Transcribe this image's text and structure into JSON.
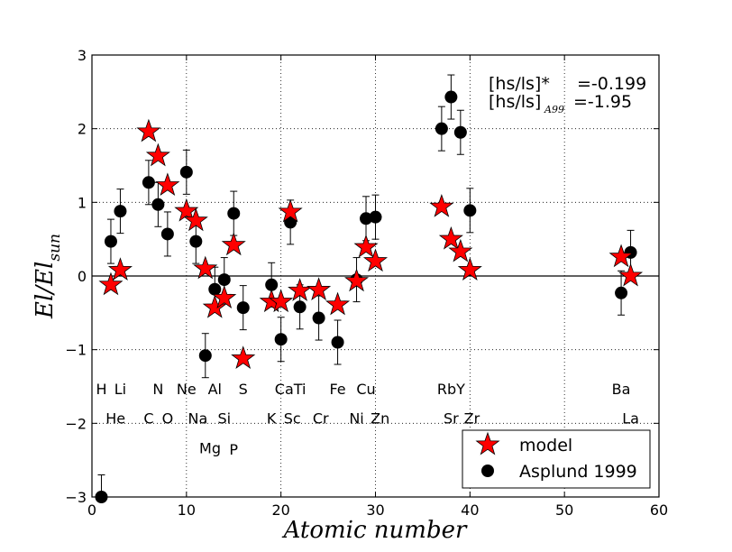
{
  "chart_data": {
    "type": "scatter",
    "title": "",
    "xlabel": "Atomic number",
    "ylabel": "El/El_sun",
    "ylabel_main": "El/El",
    "ylabel_sub": "sun",
    "xlim": [
      0,
      60
    ],
    "ylim": [
      -3,
      3
    ],
    "xticks": [
      0,
      10,
      20,
      30,
      40,
      50,
      60
    ],
    "yticks": [
      -3,
      -2,
      -1,
      0,
      1,
      2,
      3
    ],
    "xtick_labels": [
      "0",
      "10",
      "20",
      "30",
      "40",
      "50",
      "60"
    ],
    "ytick_labels": [
      "−3",
      "−2",
      "−1",
      "0",
      "1",
      "2",
      "3"
    ],
    "grid": true,
    "legend_position": "bottom-right",
    "annotations": [
      {
        "label": "[hs/ls]*",
        "value": "=-0.199"
      },
      {
        "label": "[hs/ls]",
        "sub": "A99",
        "value": "=-1.95"
      }
    ],
    "series": [
      {
        "name": "model",
        "marker": "star",
        "color": "#ff0000",
        "points": [
          {
            "x": 2,
            "y": -0.12
          },
          {
            "x": 3,
            "y": 0.08
          },
          {
            "x": 6,
            "y": 1.96
          },
          {
            "x": 7,
            "y": 1.63
          },
          {
            "x": 8,
            "y": 1.23
          },
          {
            "x": 10,
            "y": 0.88
          },
          {
            "x": 11,
            "y": 0.75
          },
          {
            "x": 12,
            "y": 0.1
          },
          {
            "x": 13,
            "y": -0.43
          },
          {
            "x": 14,
            "y": -0.3
          },
          {
            "x": 15,
            "y": 0.42
          },
          {
            "x": 16,
            "y": -1.12
          },
          {
            "x": 19,
            "y": -0.35
          },
          {
            "x": 20,
            "y": -0.35
          },
          {
            "x": 21,
            "y": 0.87
          },
          {
            "x": 22,
            "y": -0.2
          },
          {
            "x": 24,
            "y": -0.19
          },
          {
            "x": 26,
            "y": -0.39
          },
          {
            "x": 28,
            "y": -0.07
          },
          {
            "x": 29,
            "y": 0.39
          },
          {
            "x": 30,
            "y": 0.2
          },
          {
            "x": 37,
            "y": 0.94
          },
          {
            "x": 38,
            "y": 0.5
          },
          {
            "x": 39,
            "y": 0.33
          },
          {
            "x": 40,
            "y": 0.08
          },
          {
            "x": 56,
            "y": 0.26
          },
          {
            "x": 57,
            "y": 0.0
          }
        ]
      },
      {
        "name": "Asplund 1999",
        "marker": "circle",
        "color": "#000000",
        "points": [
          {
            "x": 1,
            "y": -3.0,
            "err": 0.3
          },
          {
            "x": 2,
            "y": 0.47,
            "err": 0.3
          },
          {
            "x": 3,
            "y": 0.88,
            "err": 0.3
          },
          {
            "x": 6,
            "y": 1.27,
            "err": 0.3
          },
          {
            "x": 7,
            "y": 0.97,
            "err": 0.3
          },
          {
            "x": 8,
            "y": 0.57,
            "err": 0.3
          },
          {
            "x": 10,
            "y": 1.41,
            "err": 0.3
          },
          {
            "x": 11,
            "y": 0.47,
            "err": 0.3
          },
          {
            "x": 12,
            "y": -1.08,
            "err": 0.3
          },
          {
            "x": 13,
            "y": -0.18,
            "err": 0.3
          },
          {
            "x": 14,
            "y": -0.05,
            "err": 0.3
          },
          {
            "x": 15,
            "y": 0.85,
            "err": 0.3
          },
          {
            "x": 16,
            "y": -0.43,
            "err": 0.3
          },
          {
            "x": 19,
            "y": -0.12,
            "err": 0.3
          },
          {
            "x": 20,
            "y": -0.86,
            "err": 0.3
          },
          {
            "x": 21,
            "y": 0.73,
            "err": 0.3
          },
          {
            "x": 22,
            "y": -0.42,
            "err": 0.3
          },
          {
            "x": 24,
            "y": -0.57,
            "err": 0.3
          },
          {
            "x": 26,
            "y": -0.9,
            "err": 0.3
          },
          {
            "x": 28,
            "y": -0.05,
            "err": 0.3
          },
          {
            "x": 29,
            "y": 0.78,
            "err": 0.3
          },
          {
            "x": 30,
            "y": 0.8,
            "err": 0.3
          },
          {
            "x": 37,
            "y": 2.0,
            "err": 0.3
          },
          {
            "x": 38,
            "y": 2.43,
            "err": 0.3
          },
          {
            "x": 39,
            "y": 1.95,
            "err": 0.3
          },
          {
            "x": 40,
            "y": 0.89,
            "err": 0.3
          },
          {
            "x": 56,
            "y": -0.23,
            "err": 0.3
          },
          {
            "x": 57,
            "y": 0.32,
            "err": 0.3
          }
        ]
      }
    ],
    "element_labels": [
      {
        "text": "H",
        "x": 1,
        "y": -1.53
      },
      {
        "text": "Li",
        "x": 3,
        "y": -1.53
      },
      {
        "text": "N",
        "x": 7,
        "y": -1.53
      },
      {
        "text": "Ne",
        "x": 10,
        "y": -1.53
      },
      {
        "text": "Al",
        "x": 13,
        "y": -1.53
      },
      {
        "text": "S",
        "x": 16,
        "y": -1.53
      },
      {
        "text": "CaTi",
        "x": 21,
        "y": -1.53
      },
      {
        "text": "Fe",
        "x": 26,
        "y": -1.53
      },
      {
        "text": "Cu",
        "x": 29,
        "y": -1.53
      },
      {
        "text": "RbY",
        "x": 38,
        "y": -1.53
      },
      {
        "text": "Ba",
        "x": 56,
        "y": -1.53
      },
      {
        "text": "He",
        "x": 2.5,
        "y": -1.93
      },
      {
        "text": "C",
        "x": 6,
        "y": -1.93
      },
      {
        "text": "O",
        "x": 8,
        "y": -1.93
      },
      {
        "text": "Na",
        "x": 11.2,
        "y": -1.93
      },
      {
        "text": "Si",
        "x": 14,
        "y": -1.93
      },
      {
        "text": "K",
        "x": 19,
        "y": -1.93
      },
      {
        "text": "Sc",
        "x": 21.2,
        "y": -1.93
      },
      {
        "text": "Cr",
        "x": 24.2,
        "y": -1.93
      },
      {
        "text": "Ni",
        "x": 28,
        "y": -1.93
      },
      {
        "text": "Zn",
        "x": 30.5,
        "y": -1.93
      },
      {
        "text": "Sr",
        "x": 38,
        "y": -1.93
      },
      {
        "text": "Zr",
        "x": 40.2,
        "y": -1.93
      },
      {
        "text": "La",
        "x": 57,
        "y": -1.93
      },
      {
        "text": "Mg",
        "x": 12.5,
        "y": -2.33
      },
      {
        "text": "P",
        "x": 15,
        "y": -2.35
      }
    ]
  }
}
